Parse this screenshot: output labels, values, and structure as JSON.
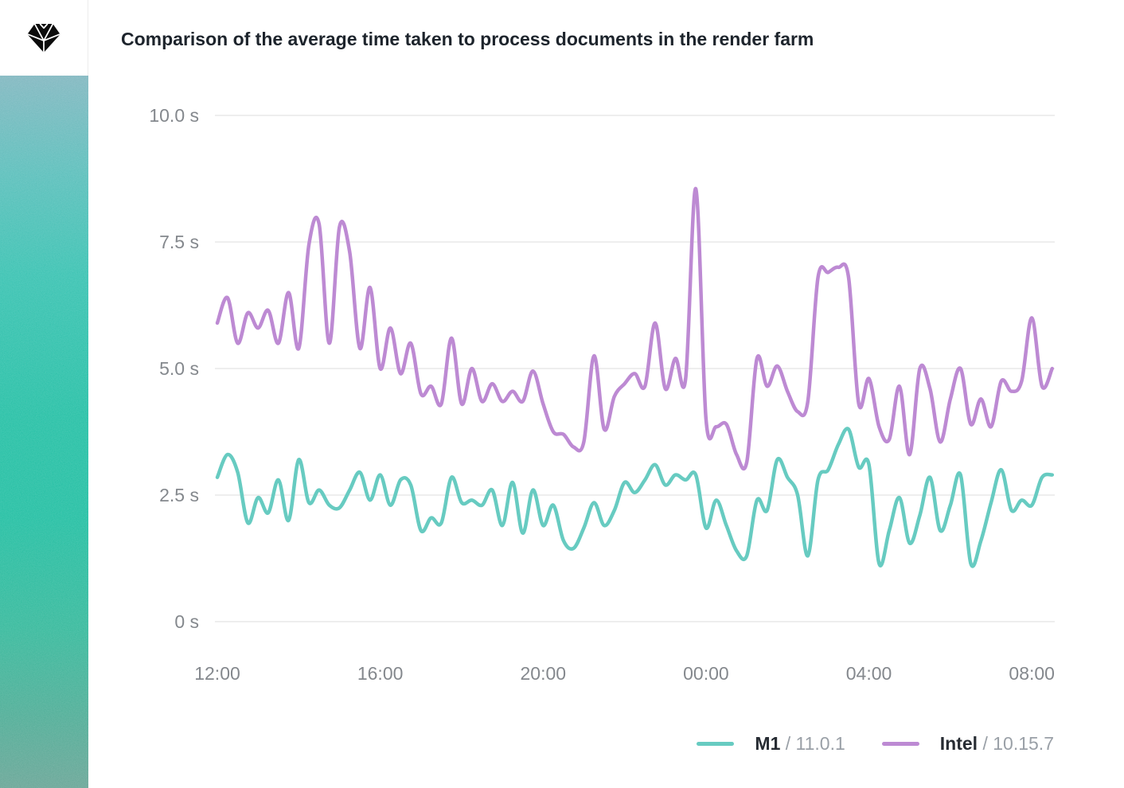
{
  "sidebar": {
    "logo_icon": "sketch-diamond-icon",
    "logo_color": "#0c0c0c",
    "gradient_top_color": "#83b7c3",
    "gradient_mid_color": "#16c1a3",
    "gradient_bottom_color": "#66a292"
  },
  "chart_data": {
    "type": "line",
    "title": "Comparison of the average time taken to process documents in the render farm",
    "grid": "horizontal-only",
    "legend_position": "bottom-right",
    "x_axis": {
      "tick_labels": [
        "12:00",
        "16:00",
        "20:00",
        "00:00",
        "04:00",
        "08:00"
      ],
      "start_time": "12:00",
      "step_minutes": 15,
      "point_times": [
        "12:00",
        "12:15",
        "12:30",
        "12:45",
        "13:00",
        "13:15",
        "13:30",
        "13:45",
        "14:00",
        "14:15",
        "14:30",
        "14:45",
        "15:00",
        "15:15",
        "15:30",
        "15:45",
        "16:00",
        "16:15",
        "16:30",
        "16:45",
        "17:00",
        "17:15",
        "17:30",
        "17:45",
        "18:00",
        "18:15",
        "18:30",
        "18:45",
        "19:00",
        "19:15",
        "19:30",
        "19:45",
        "20:00",
        "20:15",
        "20:30",
        "20:45",
        "21:00",
        "21:15",
        "21:30",
        "21:45",
        "22:00",
        "22:15",
        "22:30",
        "22:45",
        "23:00",
        "23:15",
        "23:30",
        "23:45",
        "00:00",
        "00:15",
        "00:30",
        "00:45",
        "01:00",
        "01:15",
        "01:30",
        "01:45",
        "02:00",
        "02:15",
        "02:30",
        "02:45",
        "03:00",
        "03:15",
        "03:30",
        "03:45",
        "04:00",
        "04:15",
        "04:30",
        "04:45",
        "05:00",
        "05:15",
        "05:30",
        "05:45",
        "06:00",
        "06:15",
        "06:30",
        "06:45",
        "07:00",
        "07:15",
        "07:30",
        "07:45",
        "08:00",
        "08:15",
        "08:30"
      ]
    },
    "y_axis": {
      "unit": "s",
      "min": 0,
      "max": 10,
      "ticks": [
        {
          "value": 0,
          "label": "0 s"
        },
        {
          "value": 2.5,
          "label": "2.5 s"
        },
        {
          "value": 5,
          "label": "5.0 s"
        },
        {
          "value": 7.5,
          "label": "7.5 s"
        },
        {
          "value": 10,
          "label": "10.0 s"
        }
      ]
    },
    "series": [
      {
        "name": "M1",
        "version_label": " / 11.0.1",
        "color": "#67cbc1",
        "values": [
          2.85,
          3.3,
          2.95,
          1.95,
          2.45,
          2.15,
          2.8,
          2.0,
          3.2,
          2.35,
          2.6,
          2.3,
          2.25,
          2.6,
          2.95,
          2.4,
          2.9,
          2.3,
          2.8,
          2.7,
          1.8,
          2.05,
          1.95,
          2.85,
          2.35,
          2.4,
          2.3,
          2.6,
          1.9,
          2.75,
          1.75,
          2.6,
          1.9,
          2.3,
          1.6,
          1.45,
          1.85,
          2.35,
          1.9,
          2.2,
          2.75,
          2.55,
          2.8,
          3.1,
          2.7,
          2.9,
          2.8,
          2.9,
          1.85,
          2.4,
          1.9,
          1.4,
          1.3,
          2.4,
          2.2,
          3.2,
          2.85,
          2.5,
          1.3,
          2.8,
          3.0,
          3.5,
          3.8,
          3.05,
          3.1,
          1.15,
          1.8,
          2.45,
          1.55,
          2.1,
          2.85,
          1.8,
          2.3,
          2.9,
          1.15,
          1.6,
          2.35,
          3.0,
          2.2,
          2.4,
          2.3,
          2.85,
          2.9
        ]
      },
      {
        "name": "Intel",
        "version_label": " / 10.15.7",
        "color": "#bd8ad3",
        "values": [
          5.9,
          6.4,
          5.5,
          6.1,
          5.8,
          6.15,
          5.5,
          6.5,
          5.4,
          7.45,
          7.85,
          5.5,
          7.8,
          7.3,
          5.4,
          6.6,
          5.0,
          5.8,
          4.9,
          5.5,
          4.5,
          4.65,
          4.3,
          5.6,
          4.3,
          5.0,
          4.35,
          4.7,
          4.35,
          4.55,
          4.35,
          4.95,
          4.3,
          3.75,
          3.7,
          3.45,
          3.55,
          5.25,
          3.8,
          4.45,
          4.7,
          4.9,
          4.65,
          5.9,
          4.6,
          5.2,
          4.8,
          8.55,
          4.0,
          3.85,
          3.9,
          3.3,
          3.15,
          5.2,
          4.65,
          5.05,
          4.55,
          4.15,
          4.35,
          6.8,
          6.9,
          7.0,
          6.8,
          4.3,
          4.8,
          3.85,
          3.6,
          4.65,
          3.3,
          5.0,
          4.6,
          3.55,
          4.4,
          5.0,
          3.9,
          4.4,
          3.85,
          4.75,
          4.55,
          4.75,
          6.0,
          4.65,
          5.0
        ]
      }
    ]
  }
}
